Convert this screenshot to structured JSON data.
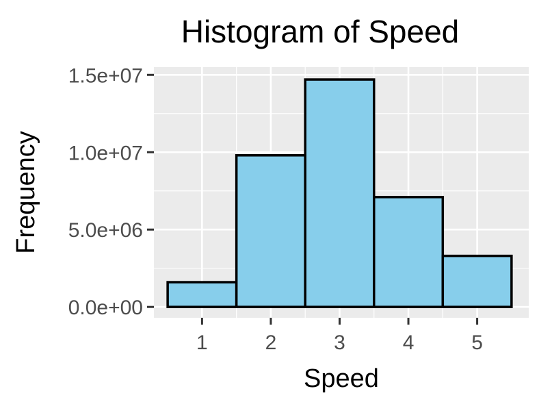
{
  "chart_data": {
    "type": "bar",
    "title": "Histogram of Speed",
    "xlabel": "Speed",
    "ylabel": "Frequency",
    "categories": [
      "1",
      "2",
      "3",
      "4",
      "5"
    ],
    "values": [
      1600000,
      9800000,
      14700000,
      7100000,
      3300000
    ],
    "xlim": [
      0.3,
      5.75
    ],
    "ylim": [
      -700000,
      15500000
    ],
    "x_ticks": [
      1,
      2,
      3,
      4,
      5
    ],
    "x_tick_labels": [
      "1",
      "2",
      "3",
      "4",
      "5"
    ],
    "y_ticks": [
      0,
      5000000,
      10000000,
      15000000
    ],
    "y_tick_labels": [
      "0.0e+00",
      "5.0e+06",
      "1.0e+07",
      "1.5e+07"
    ],
    "grid": true,
    "legend": "none",
    "colors": {
      "bar_fill": "#87ceeb",
      "bar_stroke": "#000000",
      "panel_background": "#ebebeb",
      "grid": "#ffffff",
      "tick_text": "#4d4d4d",
      "tick_mark": "#333333"
    }
  }
}
